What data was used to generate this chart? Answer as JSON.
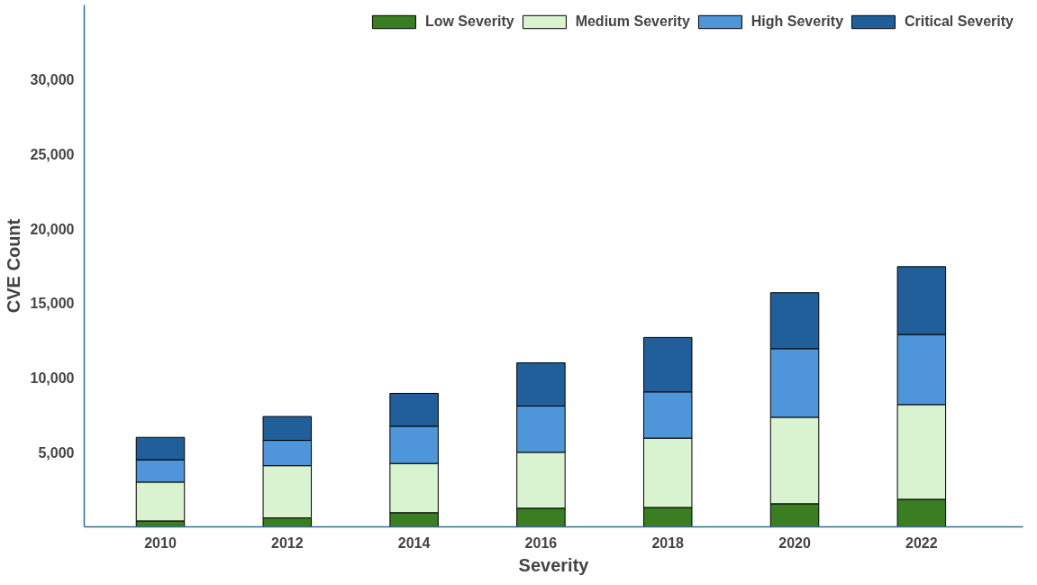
{
  "chart_data": {
    "type": "bar",
    "stacked": true,
    "xlabel": "Severity",
    "ylabel": "CVE Count",
    "categories": [
      "2010",
      "2012",
      "2014",
      "2016",
      "2018",
      "2020",
      "2022"
    ],
    "series": [
      {
        "name": "Low Severity",
        "color": "#3a7d22",
        "values": [
          400,
          600,
          950,
          1250,
          1300,
          1550,
          1850
        ]
      },
      {
        "name": "Medium Severity",
        "color": "#d9f2d0",
        "values": [
          2600,
          3500,
          3300,
          3750,
          4650,
          5800,
          6350
        ]
      },
      {
        "name": "High Severity",
        "color": "#4e95d9",
        "values": [
          1500,
          1700,
          2500,
          3100,
          3100,
          4600,
          4700
        ]
      },
      {
        "name": "Critical Severity",
        "color": "#215f9a",
        "values": [
          1500,
          1600,
          2200,
          2900,
          3650,
          3750,
          4550
        ]
      }
    ],
    "ylim": [
      0,
      35000
    ],
    "yticks": [
      {
        "value": 5000,
        "label": "5,000"
      },
      {
        "value": 10000,
        "label": "10,000"
      },
      {
        "value": 15000,
        "label": "15,000"
      },
      {
        "value": 20000,
        "label": "20,000"
      },
      {
        "value": 25000,
        "label": "25,000"
      },
      {
        "value": 30000,
        "label": "30,000"
      }
    ],
    "grid": false,
    "legend": "top right"
  }
}
